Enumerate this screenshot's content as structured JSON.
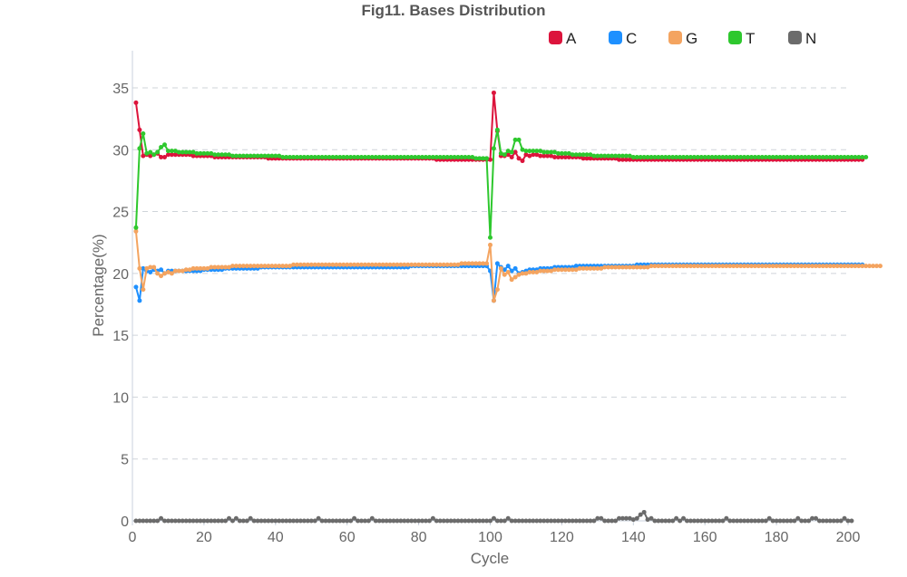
{
  "chart_data": {
    "type": "line",
    "title": "Fig11. Bases Distribution",
    "xlabel": "Cycle",
    "ylabel": "Percentage(%)",
    "xlim": [
      0,
      200
    ],
    "ylim": [
      0,
      38
    ],
    "xticks": [
      0,
      20,
      40,
      60,
      80,
      100,
      120,
      140,
      160,
      180,
      200
    ],
    "yticks": [
      0,
      5,
      10,
      15,
      20,
      25,
      30,
      35
    ],
    "grid": "horizontal dashed",
    "legend_position": "top-right",
    "series": [
      {
        "name": "A",
        "color": "#dc143c",
        "values": [
          33.8,
          31.6,
          29.5,
          29.6,
          29.5,
          29.6,
          29.7,
          29.4,
          29.4,
          29.6,
          29.6,
          29.6,
          29.6,
          29.6,
          29.6,
          29.6,
          29.5,
          29.5,
          29.5,
          29.5,
          29.5,
          29.5,
          29.4,
          29.4,
          29.4,
          29.4,
          29.4,
          29.4,
          29.4,
          29.4,
          29.4,
          29.4,
          29.4,
          29.4,
          29.4,
          29.4,
          29.4,
          29.3,
          29.3,
          29.3,
          29.3,
          29.3,
          29.3,
          29.3,
          29.3,
          29.3,
          29.3,
          29.3,
          29.3,
          29.3,
          29.3,
          29.3,
          29.3,
          29.3,
          29.3,
          29.3,
          29.3,
          29.3,
          29.3,
          29.3,
          29.3,
          29.3,
          29.3,
          29.3,
          29.3,
          29.3,
          29.3,
          29.3,
          29.3,
          29.3,
          29.3,
          29.3,
          29.3,
          29.3,
          29.3,
          29.3,
          29.3,
          29.3,
          29.3,
          29.3,
          29.3,
          29.3,
          29.3,
          29.3,
          29.2,
          29.2,
          29.2,
          29.2,
          29.2,
          29.2,
          29.2,
          29.2,
          29.2,
          29.2,
          29.2,
          29.2,
          29.2,
          29.2,
          29.2,
          29.2,
          34.6,
          31.5,
          29.5,
          29.5,
          29.6,
          29.4,
          29.8,
          29.3,
          29.1,
          29.6,
          29.5,
          29.6,
          29.6,
          29.5,
          29.5,
          29.5,
          29.5,
          29.4,
          29.4,
          29.4,
          29.4,
          29.4,
          29.4,
          29.4,
          29.4,
          29.3,
          29.3,
          29.3,
          29.3,
          29.3,
          29.3,
          29.3,
          29.3,
          29.3,
          29.3,
          29.2,
          29.2,
          29.2,
          29.2,
          29.2,
          29.2,
          29.2,
          29.2,
          29.2,
          29.2,
          29.2,
          29.2,
          29.2,
          29.2,
          29.2,
          29.2,
          29.2,
          29.2,
          29.2,
          29.2,
          29.2,
          29.2,
          29.2,
          29.2,
          29.2,
          29.2,
          29.2,
          29.2,
          29.2,
          29.2,
          29.2,
          29.2,
          29.2,
          29.2,
          29.2,
          29.2,
          29.2,
          29.2,
          29.2,
          29.2,
          29.2,
          29.2,
          29.2,
          29.2,
          29.2,
          29.2,
          29.2,
          29.2,
          29.2,
          29.2,
          29.2,
          29.2,
          29.2,
          29.2,
          29.2,
          29.2,
          29.2,
          29.2,
          29.2,
          29.2,
          29.2,
          29.2,
          29.2,
          29.2,
          29.2,
          29.2,
          29.2,
          29.2,
          29.2
        ]
      },
      {
        "name": "C",
        "color": "#1e90ff",
        "values": [
          18.9,
          17.8,
          20.4,
          20.2,
          20.1,
          20.3,
          20.2,
          20.3,
          20.0,
          20.2,
          20.2,
          20.2,
          20.2,
          20.2,
          20.2,
          20.2,
          20.2,
          20.2,
          20.2,
          20.3,
          20.3,
          20.3,
          20.3,
          20.3,
          20.3,
          20.4,
          20.4,
          20.4,
          20.4,
          20.4,
          20.4,
          20.4,
          20.4,
          20.4,
          20.4,
          20.5,
          20.5,
          20.5,
          20.5,
          20.5,
          20.5,
          20.5,
          20.5,
          20.5,
          20.5,
          20.5,
          20.5,
          20.5,
          20.5,
          20.5,
          20.5,
          20.5,
          20.5,
          20.5,
          20.5,
          20.5,
          20.5,
          20.5,
          20.5,
          20.5,
          20.5,
          20.5,
          20.5,
          20.5,
          20.5,
          20.5,
          20.5,
          20.5,
          20.5,
          20.5,
          20.5,
          20.5,
          20.5,
          20.5,
          20.5,
          20.5,
          20.5,
          20.6,
          20.6,
          20.6,
          20.6,
          20.6,
          20.6,
          20.6,
          20.6,
          20.6,
          20.6,
          20.6,
          20.6,
          20.6,
          20.6,
          20.6,
          20.6,
          20.6,
          20.6,
          20.6,
          20.6,
          20.6,
          20.6,
          20.2,
          17.8,
          20.8,
          20.5,
          20.3,
          20.6,
          20.2,
          20.4,
          20.0,
          20.1,
          20.2,
          20.3,
          20.3,
          20.3,
          20.4,
          20.4,
          20.4,
          20.4,
          20.5,
          20.5,
          20.5,
          20.5,
          20.5,
          20.5,
          20.6,
          20.6,
          20.6,
          20.6,
          20.6,
          20.6,
          20.6,
          20.6,
          20.6,
          20.6,
          20.6,
          20.6,
          20.6,
          20.6,
          20.6,
          20.6,
          20.6,
          20.7,
          20.7,
          20.7,
          20.7,
          20.7,
          20.7,
          20.7,
          20.7,
          20.7,
          20.7,
          20.7,
          20.7,
          20.7,
          20.7,
          20.7,
          20.7,
          20.7,
          20.7,
          20.7,
          20.7,
          20.7,
          20.7,
          20.7,
          20.7,
          20.7,
          20.7,
          20.7,
          20.7,
          20.7,
          20.7,
          20.7,
          20.7,
          20.7,
          20.7,
          20.7,
          20.7,
          20.7,
          20.7,
          20.7,
          20.7,
          20.7,
          20.7,
          20.7,
          20.7,
          20.7,
          20.7,
          20.7,
          20.7,
          20.7,
          20.7,
          20.7,
          20.7,
          20.7,
          20.7,
          20.7,
          20.7,
          20.7,
          20.7,
          20.7,
          20.7,
          20.7,
          20.7,
          20.7,
          20.7
        ]
      },
      {
        "name": "G",
        "color": "#f4a460",
        "values": [
          23.4,
          20.4,
          18.7,
          20.4,
          20.5,
          20.5,
          20.0,
          19.8,
          20.0,
          20.1,
          20.0,
          20.2,
          20.2,
          20.2,
          20.3,
          20.3,
          20.4,
          20.4,
          20.4,
          20.4,
          20.4,
          20.5,
          20.5,
          20.5,
          20.5,
          20.5,
          20.5,
          20.6,
          20.6,
          20.6,
          20.6,
          20.6,
          20.6,
          20.6,
          20.6,
          20.6,
          20.6,
          20.6,
          20.6,
          20.6,
          20.6,
          20.6,
          20.6,
          20.6,
          20.7,
          20.7,
          20.7,
          20.7,
          20.7,
          20.7,
          20.7,
          20.7,
          20.7,
          20.7,
          20.7,
          20.7,
          20.7,
          20.7,
          20.7,
          20.7,
          20.7,
          20.7,
          20.7,
          20.7,
          20.7,
          20.7,
          20.7,
          20.7,
          20.7,
          20.7,
          20.7,
          20.7,
          20.7,
          20.7,
          20.7,
          20.7,
          20.7,
          20.7,
          20.7,
          20.7,
          20.7,
          20.7,
          20.7,
          20.7,
          20.7,
          20.7,
          20.7,
          20.7,
          20.7,
          20.7,
          20.7,
          20.8,
          20.8,
          20.8,
          20.8,
          20.8,
          20.8,
          20.8,
          20.8,
          22.3,
          17.8,
          18.7,
          20.4,
          19.9,
          20.1,
          19.5,
          19.7,
          19.9,
          20.0,
          20.0,
          20.1,
          20.1,
          20.1,
          20.2,
          20.2,
          20.2,
          20.2,
          20.3,
          20.3,
          20.3,
          20.3,
          20.3,
          20.3,
          20.3,
          20.4,
          20.4,
          20.4,
          20.4,
          20.4,
          20.4,
          20.4,
          20.5,
          20.5,
          20.5,
          20.5,
          20.5,
          20.5,
          20.5,
          20.5,
          20.5,
          20.5,
          20.5,
          20.5,
          20.5,
          20.6,
          20.6,
          20.6,
          20.6,
          20.6,
          20.6,
          20.6,
          20.6,
          20.6,
          20.6,
          20.6,
          20.6,
          20.6,
          20.6,
          20.6,
          20.6,
          20.6,
          20.6,
          20.6,
          20.6,
          20.6,
          20.6,
          20.6,
          20.6,
          20.6,
          20.6,
          20.6,
          20.6,
          20.6,
          20.6,
          20.6,
          20.6,
          20.6,
          20.6,
          20.6,
          20.6,
          20.6,
          20.6,
          20.6,
          20.6,
          20.6,
          20.6,
          20.6,
          20.6,
          20.6,
          20.6,
          20.6,
          20.6,
          20.6,
          20.6,
          20.6,
          20.6,
          20.6,
          20.6,
          20.6,
          20.6,
          20.6,
          20.6,
          20.6,
          20.6,
          20.6,
          20.6,
          20.6,
          20.6,
          20.6
        ]
      },
      {
        "name": "T",
        "color": "#2ec82e",
        "values": [
          23.7,
          30.1,
          31.3,
          29.7,
          29.8,
          29.6,
          29.8,
          30.2,
          30.4,
          29.9,
          29.9,
          29.9,
          29.8,
          29.8,
          29.8,
          29.8,
          29.8,
          29.7,
          29.7,
          29.7,
          29.7,
          29.7,
          29.6,
          29.6,
          29.6,
          29.6,
          29.6,
          29.5,
          29.5,
          29.5,
          29.5,
          29.5,
          29.5,
          29.5,
          29.5,
          29.5,
          29.5,
          29.5,
          29.5,
          29.5,
          29.5,
          29.4,
          29.4,
          29.4,
          29.4,
          29.4,
          29.4,
          29.4,
          29.4,
          29.4,
          29.4,
          29.4,
          29.4,
          29.4,
          29.4,
          29.4,
          29.4,
          29.4,
          29.4,
          29.4,
          29.4,
          29.4,
          29.4,
          29.4,
          29.4,
          29.4,
          29.4,
          29.4,
          29.4,
          29.4,
          29.4,
          29.4,
          29.4,
          29.4,
          29.4,
          29.4,
          29.4,
          29.4,
          29.4,
          29.4,
          29.4,
          29.4,
          29.4,
          29.4,
          29.4,
          29.4,
          29.4,
          29.4,
          29.4,
          29.4,
          29.4,
          29.4,
          29.4,
          29.4,
          29.4,
          29.3,
          29.3,
          29.3,
          29.3,
          22.9,
          30.1,
          31.6,
          29.7,
          29.6,
          29.9,
          29.8,
          30.8,
          30.8,
          30.0,
          29.9,
          29.9,
          29.9,
          29.9,
          29.9,
          29.8,
          29.8,
          29.8,
          29.8,
          29.7,
          29.7,
          29.7,
          29.7,
          29.6,
          29.6,
          29.6,
          29.6,
          29.6,
          29.6,
          29.5,
          29.5,
          29.5,
          29.5,
          29.5,
          29.5,
          29.5,
          29.5,
          29.5,
          29.5,
          29.5,
          29.4,
          29.4,
          29.4,
          29.4,
          29.4,
          29.4,
          29.4,
          29.4,
          29.4,
          29.4,
          29.4,
          29.4,
          29.4,
          29.4,
          29.4,
          29.4,
          29.4,
          29.4,
          29.4,
          29.4,
          29.4,
          29.4,
          29.4,
          29.4,
          29.4,
          29.4,
          29.4,
          29.4,
          29.4,
          29.4,
          29.4,
          29.4,
          29.4,
          29.4,
          29.4,
          29.4,
          29.4,
          29.4,
          29.4,
          29.4,
          29.4,
          29.4,
          29.4,
          29.4,
          29.4,
          29.4,
          29.4,
          29.4,
          29.4,
          29.4,
          29.4,
          29.4,
          29.4,
          29.4,
          29.4,
          29.4,
          29.4,
          29.4,
          29.4,
          29.4,
          29.4,
          29.4,
          29.4,
          29.4,
          29.4,
          29.4
        ]
      },
      {
        "name": "N",
        "color": "#6b6b6b",
        "values": [
          0,
          0,
          0,
          0,
          0,
          0,
          0,
          0.2,
          0,
          0,
          0,
          0,
          0,
          0,
          0,
          0,
          0,
          0,
          0,
          0,
          0,
          0,
          0,
          0,
          0,
          0,
          0.2,
          0,
          0.2,
          0,
          0,
          0,
          0.2,
          0,
          0,
          0,
          0,
          0,
          0,
          0,
          0,
          0,
          0,
          0,
          0,
          0,
          0,
          0,
          0,
          0,
          0,
          0.2,
          0,
          0,
          0,
          0,
          0,
          0,
          0,
          0,
          0,
          0.2,
          0,
          0,
          0,
          0,
          0.2,
          0,
          0,
          0,
          0,
          0,
          0,
          0,
          0,
          0,
          0,
          0,
          0,
          0,
          0,
          0,
          0,
          0.2,
          0,
          0,
          0,
          0,
          0,
          0,
          0,
          0,
          0,
          0,
          0,
          0,
          0,
          0,
          0,
          0,
          0.2,
          0,
          0,
          0,
          0.2,
          0,
          0,
          0,
          0,
          0,
          0,
          0,
          0,
          0,
          0,
          0,
          0,
          0,
          0,
          0,
          0,
          0,
          0,
          0,
          0,
          0,
          0,
          0,
          0,
          0.2,
          0.2,
          0,
          0,
          0,
          0,
          0.2,
          0.2,
          0.2,
          0.2,
          0.1,
          0.2,
          0.5,
          0.7,
          0.1,
          0.2,
          0,
          0,
          0,
          0,
          0,
          0,
          0.2,
          0,
          0.2,
          0,
          0,
          0,
          0,
          0,
          0,
          0,
          0,
          0,
          0,
          0,
          0.2,
          0,
          0,
          0,
          0,
          0,
          0,
          0,
          0,
          0,
          0,
          0,
          0.2,
          0,
          0,
          0,
          0,
          0,
          0,
          0,
          0.2,
          0,
          0,
          0,
          0.2,
          0.2,
          0,
          0,
          0,
          0,
          0,
          0,
          0,
          0.2,
          0,
          0
        ]
      }
    ]
  }
}
